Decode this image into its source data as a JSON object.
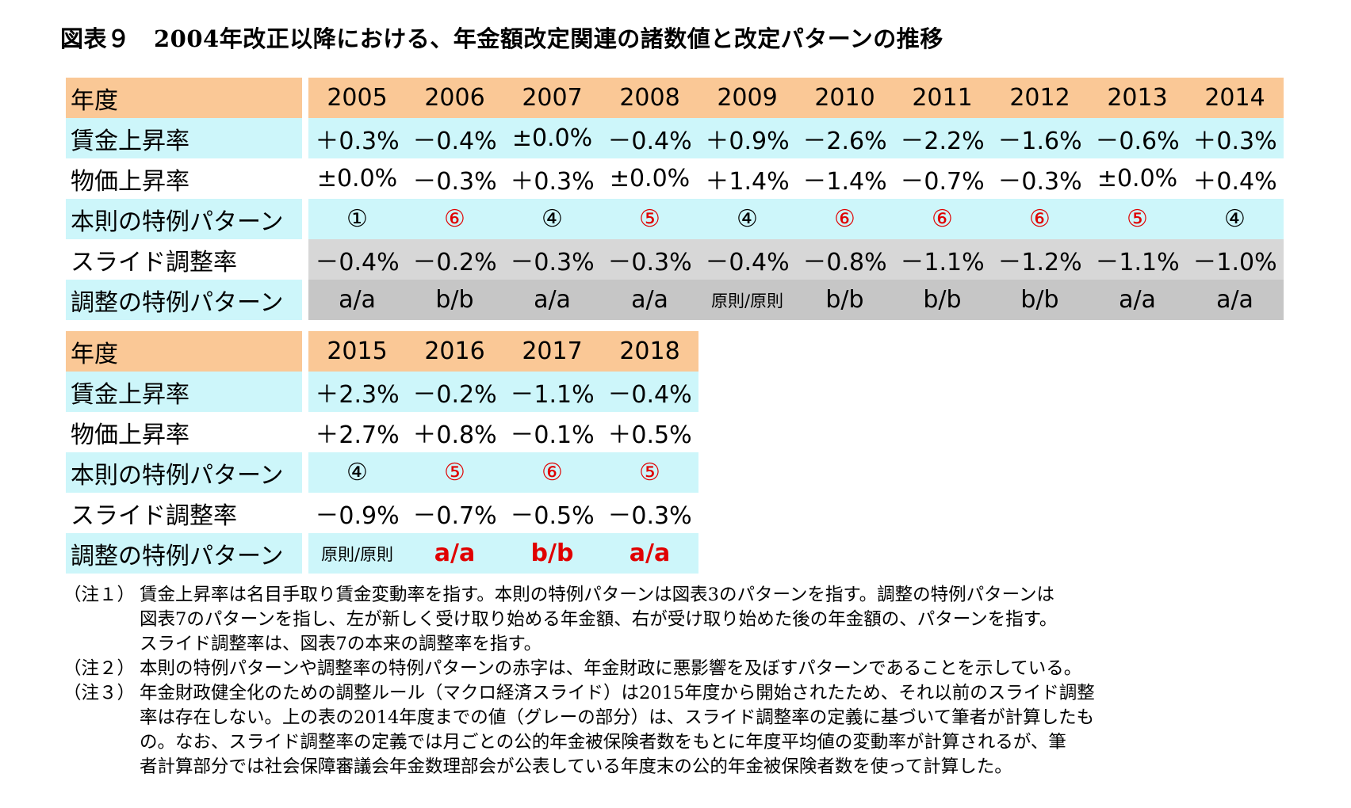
{
  "title": "図表９　2004年改正以降における、年金額改定関連の諸数値と改定パターンの推移",
  "row_labels": {
    "year": "年度",
    "wage": "賃金上昇率",
    "price": "物価上昇率",
    "main_pattern": "本則の特例パターン",
    "slide": "スライド調整率",
    "adj_pattern": "調整の特例パターン"
  },
  "table1": {
    "years": [
      "2005",
      "2006",
      "2007",
      "2008",
      "2009",
      "2010",
      "2011",
      "2012",
      "2013",
      "2014"
    ],
    "wage": [
      "＋0.3%",
      "－0.4%",
      "±0.0%",
      "－0.4%",
      "＋0.9%",
      "－2.6%",
      "－2.2%",
      "－1.6%",
      "－0.6%",
      "＋0.3%"
    ],
    "price": [
      "±0.0%",
      "－0.3%",
      "＋0.3%",
      "±0.0%",
      "＋1.4%",
      "－1.4%",
      "－0.7%",
      "－0.3%",
      "±0.0%",
      "＋0.4%"
    ],
    "main_pattern": [
      "①",
      "⑥",
      "④",
      "⑤",
      "④",
      "⑥",
      "⑥",
      "⑥",
      "⑤",
      "④"
    ],
    "slide": [
      "－0.4%",
      "－0.2%",
      "－0.3%",
      "－0.3%",
      "－0.4%",
      "－0.8%",
      "－1.1%",
      "－1.2%",
      "－1.1%",
      "－1.0%"
    ],
    "adj_pattern": [
      "a/a",
      "b/b",
      "a/a",
      "a/a",
      "原則/原則",
      "b/b",
      "b/b",
      "b/b",
      "a/a",
      "a/a"
    ]
  },
  "table2": {
    "years": [
      "2015",
      "2016",
      "2017",
      "2018"
    ],
    "wage": [
      "＋2.3%",
      "－0.2%",
      "－1.1%",
      "－0.4%"
    ],
    "price": [
      "＋2.7%",
      "＋0.8%",
      "－0.1%",
      "＋0.5%"
    ],
    "main_pattern": [
      "④",
      "⑤",
      "⑥",
      "⑤"
    ],
    "slide": [
      "－0.9%",
      "－0.7%",
      "－0.5%",
      "－0.3%"
    ],
    "adj_pattern": [
      "原則/原則",
      "a/a",
      "b/b",
      "a/a"
    ]
  },
  "notes": [
    {
      "label": "（注１）",
      "lines": [
        "賃金上昇率は名目手取り賃金変動率を指す。本則の特例パターンは図表3のパターンを指す。調整の特例パターンは",
        "図表7のパターンを指し、左が新しく受け取り始める年金額、右が受け取り始めた後の年金額の、パターンを指す。",
        "スライド調整率は、図表7の本来の調整率を指す。"
      ]
    },
    {
      "label": "（注２）",
      "lines": [
        "本則の特例パターンや調整率の特例パターンの赤字は、年金財政に悪影響を及ぼすパターンであることを示している。"
      ]
    },
    {
      "label": "（注３）",
      "lines": [
        "年金財政健全化のための調整ルール（マクロ経済スライド）は2015年度から開始されたため、それ以前のスライド調整",
        "率は存在しない。上の表の2014年度までの値（グレーの部分）は、スライド調整率の定義に基づいて筆者が計算したも",
        "の。なお、スライド調整率の定義では月ごとの公的年金被保険者数をもとに年度平均値の変動率が計算されるが、筆",
        "者計算部分では社会保障審議会年金数理部会が公表している年度末の公的年金被保険者数を使って計算した。"
      ]
    }
  ],
  "colors": {
    "header_bg": "#fac896",
    "highlight_bg": "#cdf6fa",
    "gray_light": "#d7d7d7",
    "gray_dark": "#c6c6c6",
    "red_text": "#e00000"
  }
}
